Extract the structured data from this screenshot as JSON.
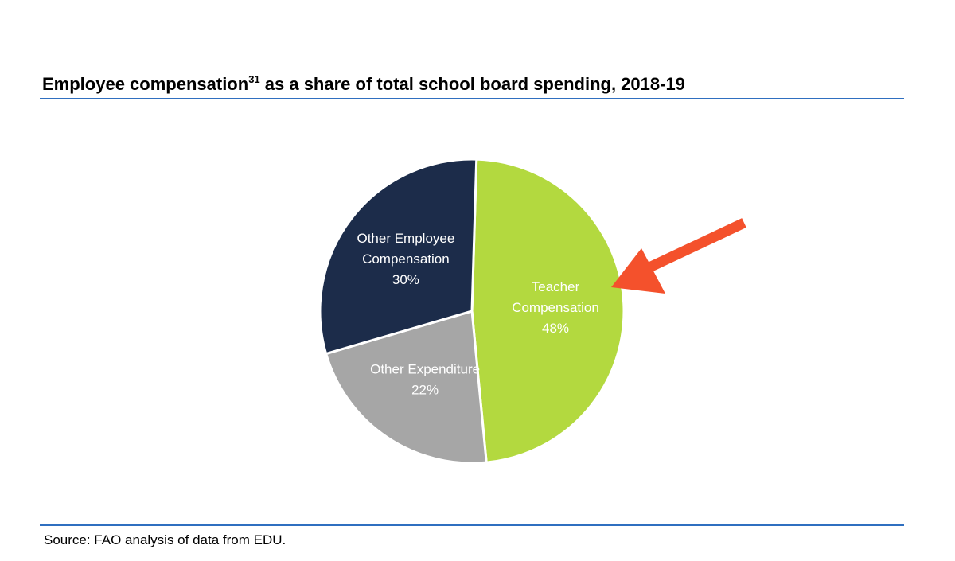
{
  "title": {
    "text_before": "Employee compensation",
    "superscript": "31",
    "text_after": " as a share of total school board spending, 2018-19"
  },
  "source": "Source: FAO analysis of data from EDU.",
  "colors": {
    "rule": "#2f6fc0",
    "arrow": "#f4512c",
    "slice_border": "#ffffff"
  },
  "annotation": {
    "type": "arrow",
    "points_to": "Teacher Compensation",
    "color": "#f4512c"
  },
  "chart_data": {
    "type": "pie",
    "title": "Employee compensation31 as a share of total school board spending, 2018-19",
    "start": "12 o'clock",
    "direction": "clockwise",
    "legend": "none",
    "slices": [
      {
        "label_lines": [
          "Teacher",
          "Compensation"
        ],
        "pct_label": "48%",
        "name": "Teacher Compensation",
        "value": 48,
        "color": "#b3d93f"
      },
      {
        "label_lines": [
          "Other Expenditure"
        ],
        "pct_label": "22%",
        "name": "Other Expenditure",
        "value": 22,
        "color": "#a6a6a6"
      },
      {
        "label_lines": [
          "Other Employee",
          "Compensation"
        ],
        "pct_label": "30%",
        "name": "Other Employee Compensation",
        "value": 30,
        "color": "#1c2c4a"
      }
    ]
  }
}
